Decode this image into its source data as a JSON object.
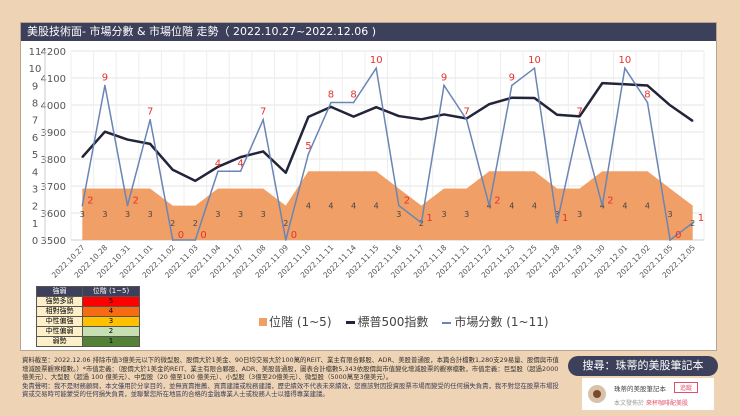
{
  "title": "美股技術面- 市場分數 & 市場位階 走勢（ 2022.10.27~2022.12.06 )",
  "chart_data": {
    "type": "line",
    "categories": [
      "2022.10.27",
      "2022.10.28",
      "2022.10.31",
      "2022.11.01",
      "2022.11.02",
      "2022.11.03",
      "2022.11.04",
      "2022.11.07",
      "2022.11.08",
      "2022.11.09",
      "2022.11.10",
      "2022.11.11",
      "2022.11.14",
      "2022.11.15",
      "2022.11.16",
      "2022.11.17",
      "2022.11.18",
      "2022.11.21",
      "2022.11.22",
      "2022.11.23",
      "2022.11.25",
      "2022.11.28",
      "2022.11.29",
      "2022.11.30",
      "2022.12.01",
      "2022.12.02",
      "2022.12.05",
      "2022.12.05"
    ],
    "series": [
      {
        "name": "位階 (1~5)",
        "type": "area",
        "axis": "score",
        "color": "#f0a066",
        "values": [
          3,
          3,
          3,
          3,
          2,
          2,
          3,
          3,
          3,
          2,
          4,
          4,
          4,
          4,
          3,
          2,
          3,
          3,
          4,
          4,
          4,
          3,
          3,
          4,
          4,
          4,
          3,
          2
        ]
      },
      {
        "name": "標普500指數",
        "type": "line",
        "axis": "index",
        "color": "#22243a",
        "values": [
          3807,
          3901,
          3872,
          3856,
          3760,
          3719,
          3771,
          3807,
          3828,
          3749,
          3956,
          3993,
          3957,
          3992,
          3959,
          3947,
          3965,
          3950,
          4003,
          4027,
          4026,
          3964,
          3958,
          4081,
          4077,
          4072,
          3999,
          3941
        ]
      },
      {
        "name": "市場分數 (1~11)",
        "type": "line",
        "axis": "score",
        "color": "#6a85b4",
        "values": [
          2,
          9,
          2,
          7,
          0,
          0,
          4,
          4,
          7,
          0,
          5,
          8,
          8,
          10,
          2,
          1,
          9,
          7,
          2,
          9,
          10,
          1,
          7,
          2,
          10,
          8,
          0,
          1
        ]
      }
    ],
    "score_axis": {
      "range": [
        0,
        11
      ],
      "ticks": [
        "0",
        "1",
        "2",
        "3",
        "4",
        "5",
        "6",
        "7",
        "8",
        "9",
        "10",
        "11"
      ]
    },
    "index_axis": {
      "range": [
        3500,
        4200
      ],
      "ticks": [
        "3500",
        "3600",
        "3700",
        "3800",
        "3900",
        "4000",
        "4100",
        "4200"
      ]
    },
    "grid": true,
    "legend": "bottom"
  },
  "level_table": {
    "headers": [
      "強弱",
      "位階 (1~5)"
    ],
    "rows": [
      {
        "label": "強勢多頭",
        "value": "5",
        "color": "#ff0000"
      },
      {
        "label": "相對強勢",
        "value": "4",
        "color": "#f56c12"
      },
      {
        "label": "中性偏強",
        "value": "3",
        "color": "#ffc000"
      },
      {
        "label": "中性偏弱",
        "value": "2",
        "color": "#c6e0b4"
      },
      {
        "label": "弱勢",
        "value": "1",
        "color": "#548235"
      }
    ]
  },
  "footer": {
    "data_note": "資料截至：2022.12.06 排除市值3億美元以下的微型股、股價大於1美金、90日均交易大於100萬的REIT、業主有限合夥股、ADR、美股普通股，本篇合計檔數1,280支29易量、股價與市值增減股票觀察檔數。）*市值定義：（股價大於1美金的REIT、業主有限合夥股、ADR、美股普通股，圖表合計檔數5,343依股價與市值變化增減股票的觀察檔數，市值定義：巨型股（超過2000億美元）、大型股（超過 100 億美元）、中型股（20 億至100 億美元）、小型股（3億至20億美元）、微型股（5000萬至3億美元）。",
    "disclaimer": "免責聲明：我不是財務顧問，本文僅用於分享目的，並無買賣推薦、買賣建議或稅務建議，歷史績效不代表未來績效，您應該對因投資股票市場而變受的任何損失負責，我不對您在股票市場投資或交易時可能蒙受的任何損失負責，並聯繫您所在地區的合格的金融專業人士或稅務人士以獲得專業建議。"
  },
  "search_banner": "搜尋：珠蒂的美股筆記本",
  "promo": {
    "name": "珠蒂的美股筆記本",
    "follow": "追蹤",
    "sub_prefix": "本文發佈於",
    "sub_link": "來杯咖啡配美股"
  }
}
